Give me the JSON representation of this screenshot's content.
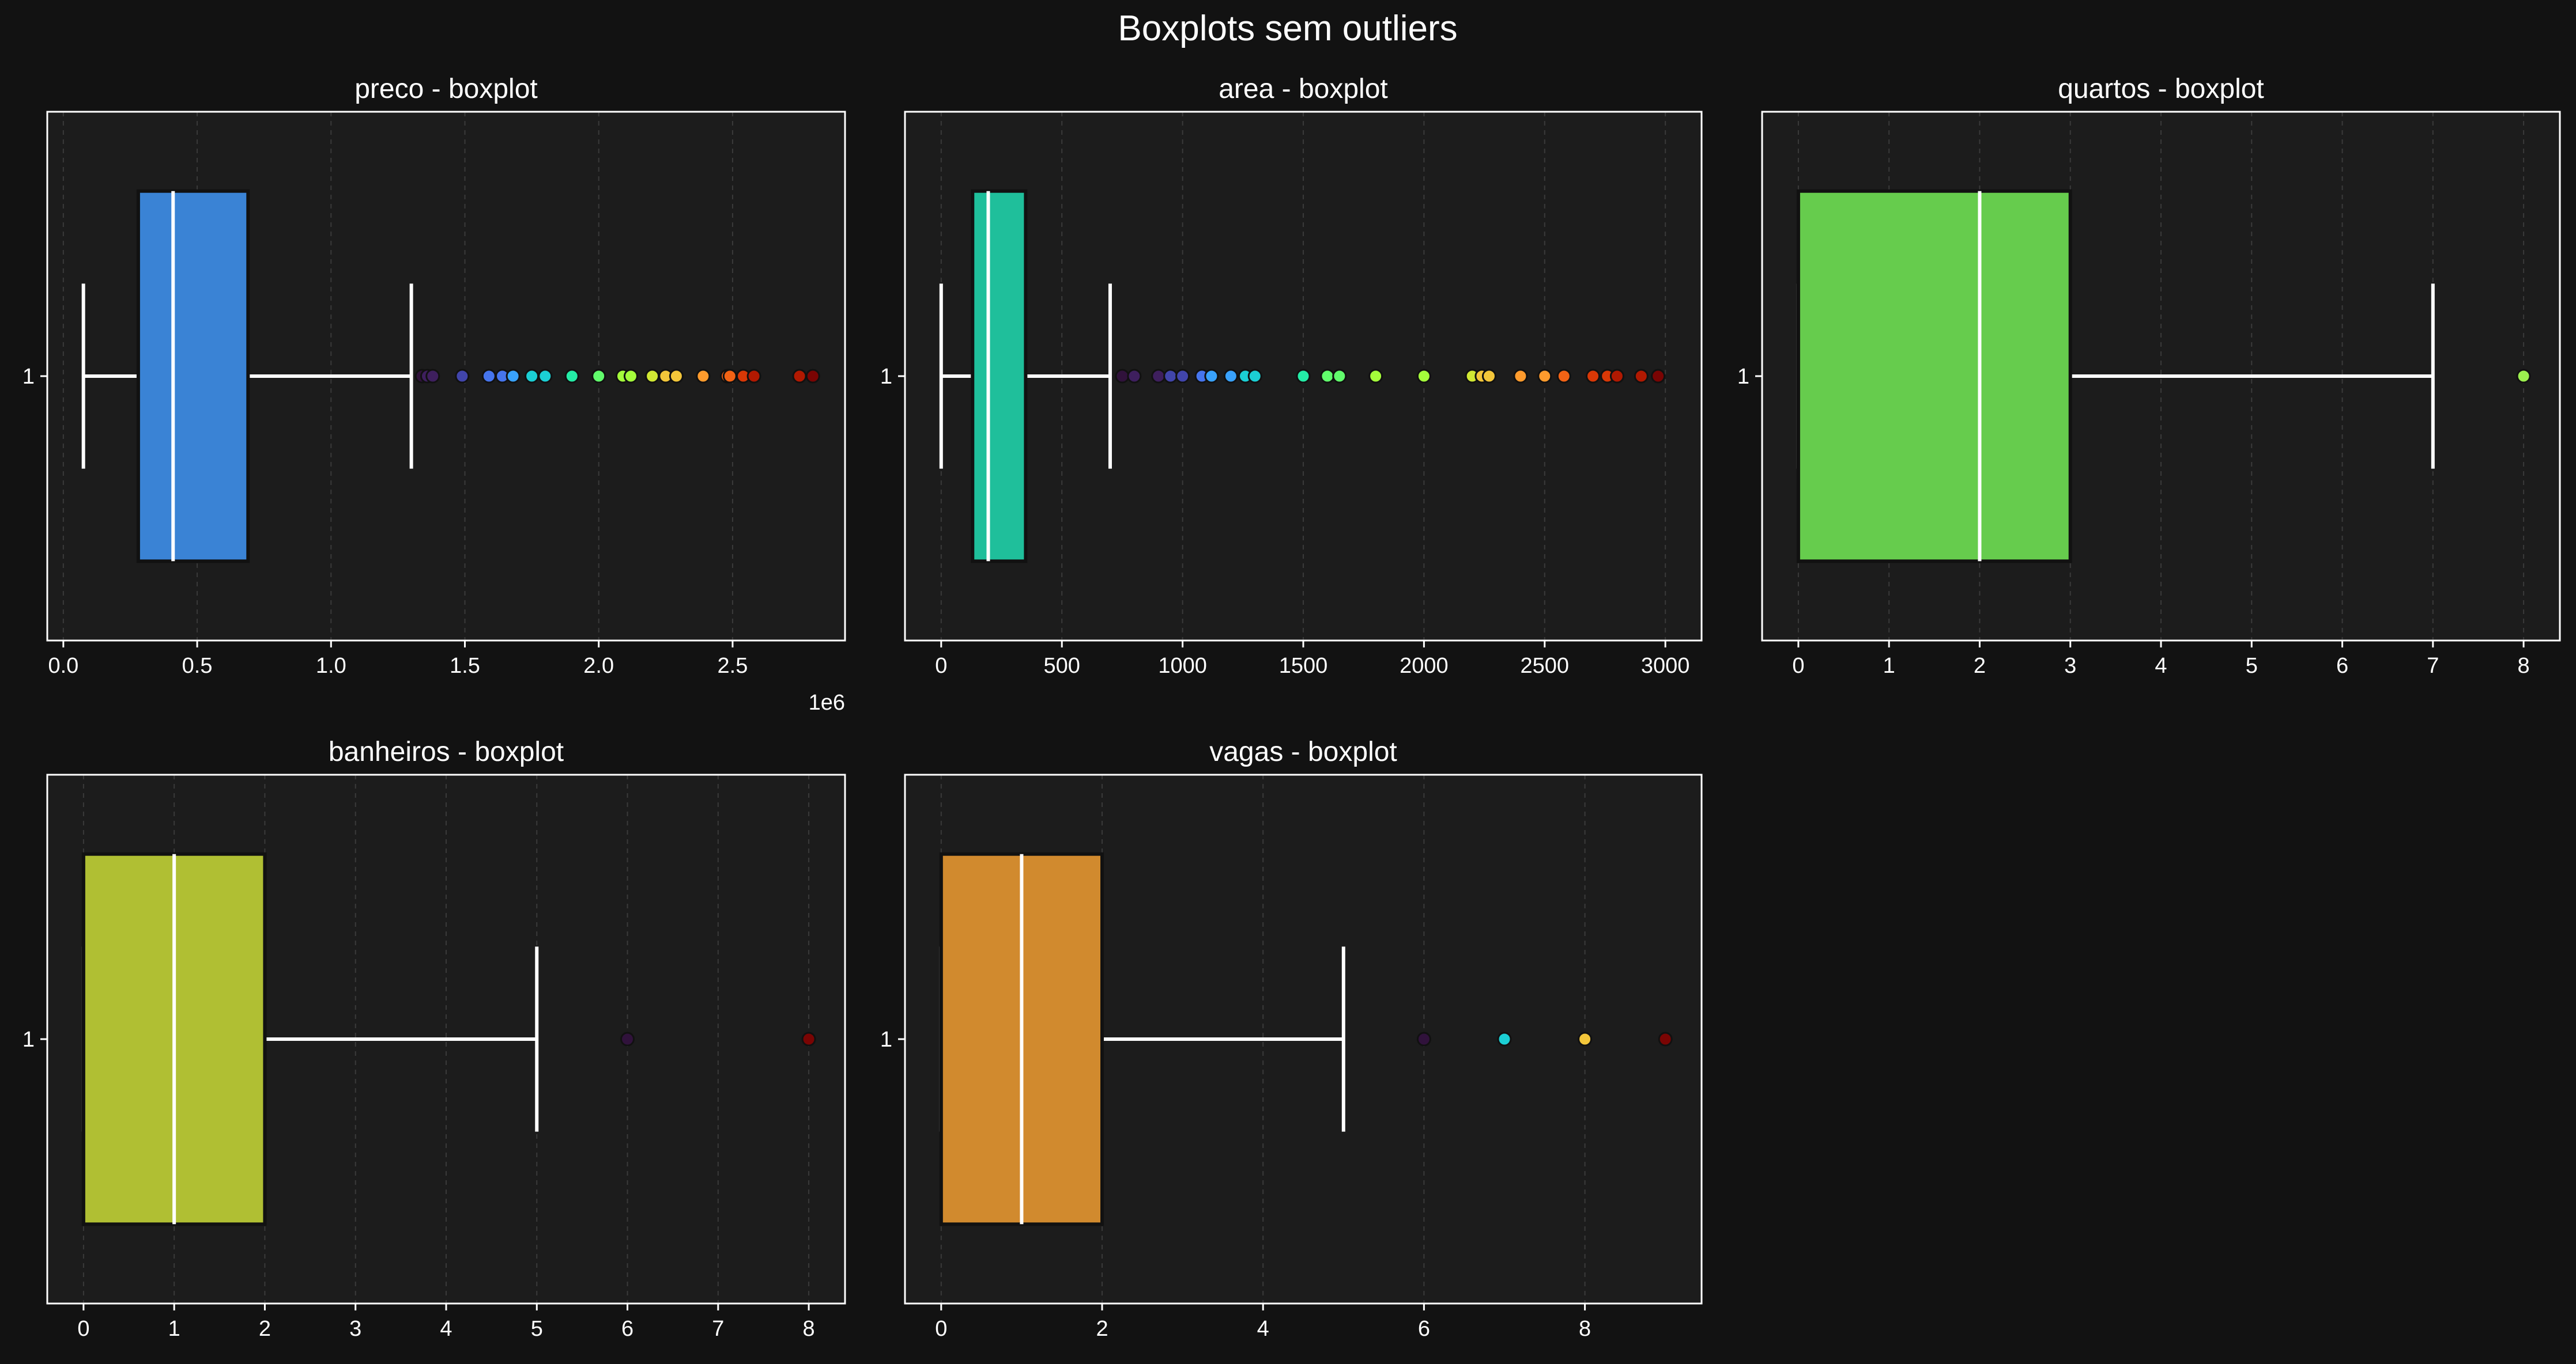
{
  "figure": {
    "title": "Boxplots sem outliers",
    "background": "#121212",
    "axes_face": "#1c1c1c",
    "text_color": "#ffffff"
  },
  "chart_data": [
    {
      "type": "boxplot",
      "title": "preco - boxplot",
      "category": "1",
      "xlim": [
        -0.06,
        2.92
      ],
      "x_ticks": [
        0.0,
        0.5,
        1.0,
        1.5,
        2.0,
        2.5
      ],
      "x_tick_labels": [
        "0.0",
        "0.5",
        "1.0",
        "1.5",
        "2.0",
        "2.5"
      ],
      "offset_label": "1e6",
      "whisker_low": 0.075,
      "q1": 0.28,
      "median": 0.41,
      "q3": 0.69,
      "whisker_high": 1.3,
      "box_color": "#3a83d5",
      "outliers": [
        1.34,
        1.36,
        1.38,
        1.49,
        1.59,
        1.64,
        1.68,
        1.75,
        1.8,
        1.9,
        2.0,
        2.09,
        2.12,
        2.2,
        2.25,
        2.29,
        2.39,
        2.48,
        2.49,
        2.54,
        2.58,
        2.75,
        2.8
      ]
    },
    {
      "type": "boxplot",
      "title": "area - boxplot",
      "category": "1",
      "xlim": [
        -150,
        3150
      ],
      "x_ticks": [
        0,
        500,
        1000,
        1500,
        2000,
        2500,
        3000
      ],
      "x_tick_labels": [
        "0",
        "500",
        "1000",
        "1500",
        "2000",
        "2500",
        "3000"
      ],
      "whisker_low": 0,
      "q1": 130,
      "median": 195,
      "q3": 350,
      "whisker_high": 700,
      "box_color": "#1fbf9b",
      "outliers": [
        750,
        800,
        900,
        950,
        1000,
        1080,
        1120,
        1200,
        1260,
        1300,
        1500,
        1600,
        1650,
        1800,
        2000,
        2200,
        2240,
        2270,
        2400,
        2500,
        2580,
        2700,
        2760,
        2800,
        2900,
        2970
      ]
    },
    {
      "type": "boxplot",
      "title": "quartos - boxplot",
      "category": "1",
      "xlim": [
        -0.4,
        8.4
      ],
      "x_ticks": [
        0,
        1,
        2,
        3,
        4,
        5,
        6,
        7,
        8
      ],
      "x_tick_labels": [
        "0",
        "1",
        "2",
        "3",
        "4",
        "5",
        "6",
        "7",
        "8"
      ],
      "whisker_low": 0,
      "q1": 0,
      "median": 2,
      "q3": 3,
      "whisker_high": 7,
      "box_color": "#66cc4d",
      "outliers": [
        8
      ]
    },
    {
      "type": "boxplot",
      "title": "banheiros - boxplot",
      "category": "1",
      "xlim": [
        -0.4,
        8.4
      ],
      "x_ticks": [
        0,
        1,
        2,
        3,
        4,
        5,
        6,
        7,
        8
      ],
      "x_tick_labels": [
        "0",
        "1",
        "2",
        "3",
        "4",
        "5",
        "6",
        "7",
        "8"
      ],
      "whisker_low": 0,
      "q1": 0,
      "median": 1,
      "q3": 2,
      "whisker_high": 5,
      "box_color": "#b0bf33",
      "outliers": [
        6,
        8
      ]
    },
    {
      "type": "boxplot",
      "title": "vagas - boxplot",
      "category": "1",
      "xlim": [
        -0.45,
        9.45
      ],
      "x_ticks": [
        0,
        2,
        4,
        6,
        8
      ],
      "x_tick_labels": [
        "0",
        "2",
        "4",
        "6",
        "8"
      ],
      "whisker_low": 0,
      "q1": 0,
      "median": 1,
      "q3": 2,
      "whisker_high": 5,
      "box_color": "#d18a2e",
      "outliers": [
        6,
        7,
        8,
        9
      ]
    }
  ]
}
